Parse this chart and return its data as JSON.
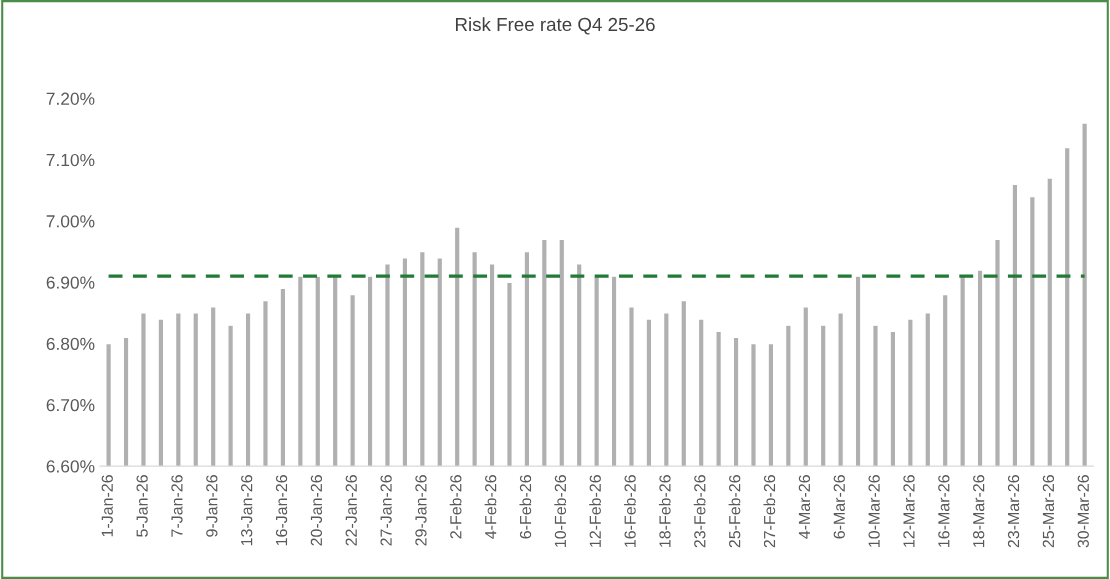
{
  "chart_data": {
    "type": "bar",
    "title": "Risk Free rate Q4 25-26",
    "categories": [
      "1-Jan-26",
      null,
      "5-Jan-26",
      null,
      "7-Jan-26",
      null,
      "9-Jan-26",
      null,
      "13-Jan-26",
      null,
      "16-Jan-26",
      null,
      "20-Jan-26",
      null,
      "22-Jan-26",
      null,
      "27-Jan-26",
      null,
      "29-Jan-26",
      null,
      "2-Feb-26",
      null,
      "4-Feb-26",
      null,
      "6-Feb-26",
      null,
      "10-Feb-26",
      null,
      "12-Feb-26",
      null,
      "16-Feb-26",
      null,
      "18-Feb-26",
      null,
      "23-Feb-26",
      null,
      "25-Feb-26",
      null,
      "27-Feb-26",
      null,
      "4-Mar-26",
      null,
      "6-Mar-26",
      null,
      "10-Mar-26",
      null,
      "12-Mar-26",
      null,
      "16-Mar-26",
      null,
      "18-Mar-26",
      null,
      "23-Mar-26",
      null,
      "25-Mar-26",
      null,
      "30-Mar-26"
    ],
    "series": [
      {
        "color": "#b0b0b0",
        "values": [
          6.8,
          6.81,
          6.85,
          6.84,
          6.85,
          6.85,
          6.86,
          6.83,
          6.85,
          6.87,
          6.89,
          6.91,
          6.91,
          6.91,
          6.88,
          6.91,
          6.93,
          6.94,
          6.95,
          6.94,
          6.99,
          6.95,
          6.93,
          6.9,
          6.95,
          6.97,
          6.97,
          6.93,
          6.91,
          6.91,
          6.86,
          6.84,
          6.85,
          6.87,
          6.84,
          6.82,
          6.81,
          6.8,
          6.8,
          6.83,
          6.86,
          6.83,
          6.85,
          6.91,
          6.83,
          6.82,
          6.84,
          6.85,
          6.88,
          6.91,
          6.92,
          6.97,
          7.06,
          7.04,
          7.07,
          7.12,
          7.16
        ]
      }
    ],
    "ylim": [
      6.6,
      7.2
    ],
    "yticks": [
      {
        "value": 6.6,
        "label": "6.60%"
      },
      {
        "value": 6.7,
        "label": "6.70%"
      },
      {
        "value": 6.8,
        "label": "6.80%"
      },
      {
        "value": 6.9,
        "label": "6.90%"
      },
      {
        "value": 7.0,
        "label": "7.00%"
      },
      {
        "value": 7.1,
        "label": "7.10%"
      },
      {
        "value": 7.2,
        "label": "7.20%"
      }
    ],
    "ref_lines": [
      {
        "axis": "y",
        "value": 6.91,
        "color": "#217a35",
        "line_style": "dashed"
      }
    ],
    "grid": false,
    "legend": false
  }
}
